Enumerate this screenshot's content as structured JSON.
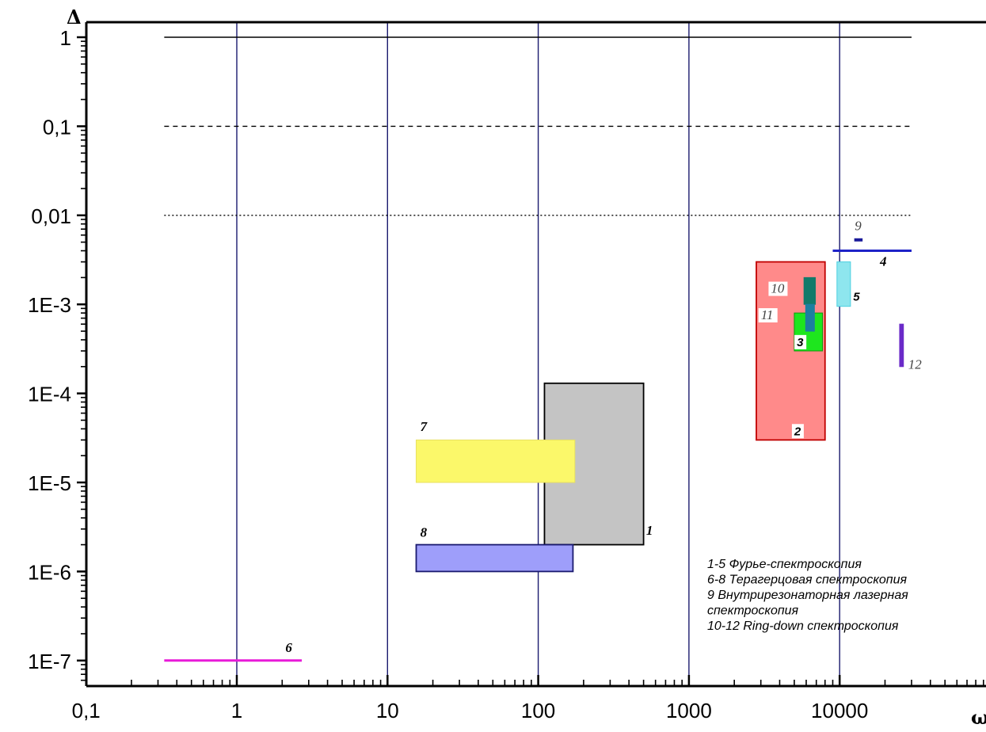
{
  "chart_data": {
    "type": "range-regions",
    "xlabel": "ω",
    "ylabel": "Δ",
    "x_scale": "log",
    "y_scale": "log",
    "xlim": [
      0.1,
      50000
    ],
    "ylim": [
      5e-08,
      1.5
    ],
    "x_ticks": [
      {
        "value": 0.1,
        "label": "0,1"
      },
      {
        "value": 1,
        "label": "1"
      },
      {
        "value": 10,
        "label": "10"
      },
      {
        "value": 100,
        "label": "100"
      },
      {
        "value": 1000,
        "label": "1000"
      },
      {
        "value": 10000,
        "label": "10000"
      }
    ],
    "y_ticks": [
      {
        "value": 1,
        "label": "1"
      },
      {
        "value": 0.1,
        "label": "0,1"
      },
      {
        "value": 0.01,
        "label": "0,01"
      },
      {
        "value": 0.001,
        "label": "1E-3"
      },
      {
        "value": 0.0001,
        "label": "1E-4"
      },
      {
        "value": 1e-05,
        "label": "1E-5"
      },
      {
        "value": 1e-06,
        "label": "1E-6"
      },
      {
        "value": 1e-07,
        "label": "1E-7"
      }
    ],
    "vertical_gridlines": [
      1,
      10,
      100,
      1000,
      10000
    ],
    "reference_lines": [
      {
        "y": 1,
        "x_from": 0.33,
        "x_to": 30000,
        "style": "solid"
      },
      {
        "y": 0.1,
        "x_from": 0.33,
        "x_to": 30000,
        "style": "dashed"
      },
      {
        "y": 0.01,
        "x_from": 0.33,
        "x_to": 30000,
        "style": "dotted"
      }
    ],
    "regions": [
      {
        "label": "1",
        "x_min": 110,
        "x_max": 500,
        "y_min": 2e-06,
        "y_max": 0.00013,
        "fill": "#c4c4c4",
        "stroke": "#000000",
        "label_x": 520,
        "label_y": 2.6e-06,
        "label_style": "serif"
      },
      {
        "label": "2",
        "x_min": 2800,
        "x_max": 8000,
        "y_min": 3e-05,
        "y_max": 0.003,
        "fill": "#ff8a8a",
        "stroke": "#c00000",
        "label_x": 5000,
        "label_y": 3.4e-05,
        "label_style": "boxed"
      },
      {
        "label": "3",
        "x_min": 5000,
        "x_max": 7700,
        "y_min": 0.0003,
        "y_max": 0.0008,
        "fill": "#1ee61e",
        "stroke": "#119911",
        "label_x": 5200,
        "label_y": 0.00034,
        "label_style": "boxed"
      },
      {
        "label": "4",
        "x_min": 9000,
        "x_max": 30000,
        "y_min": 0.004,
        "y_max": 0.004,
        "fill": "#1e22c8",
        "stroke": "#1e22c8",
        "line": true,
        "label_x": 18500,
        "label_y": 0.0027,
        "label_style": "serif"
      },
      {
        "label": "5",
        "x_min": 9600,
        "x_max": 11800,
        "y_min": 0.00095,
        "y_max": 0.003,
        "fill": "#8ee6ee",
        "stroke": "#4cd0e0",
        "label_x": 12300,
        "label_y": 0.0011,
        "label_style": "sans"
      },
      {
        "label": "6",
        "x_min": 0.33,
        "x_max": 2.7,
        "y_min": 1e-07,
        "y_max": 1e-07,
        "fill": "#e81ad8",
        "stroke": "#e81ad8",
        "line": true,
        "label_x": 2.1,
        "label_y": 1.25e-07,
        "label_style": "serif"
      },
      {
        "label": "7",
        "x_min": 15.5,
        "x_max": 175,
        "y_min": 1e-05,
        "y_max": 3e-05,
        "fill": "#fbf86a",
        "stroke": "#e8e060",
        "label_x": 16.5,
        "label_y": 3.8e-05,
        "label_style": "serif"
      },
      {
        "label": "8",
        "x_min": 15.5,
        "x_max": 170,
        "y_min": 1e-06,
        "y_max": 2e-06,
        "fill": "#9e9efa",
        "stroke": "#1a1a6e",
        "label_x": 16.5,
        "label_y": 2.45e-06,
        "label_style": "serif"
      },
      {
        "label": "9",
        "x_min": 12500,
        "x_max": 14200,
        "y_min": 0.0053,
        "y_max": 0.0053,
        "fill": "#1a1a9a",
        "stroke": "#1a1a9a",
        "line": true,
        "label_x": 12600,
        "label_y": 0.0068,
        "label_style": "thin"
      },
      {
        "label": "10",
        "x_min": 5800,
        "x_max": 6900,
        "y_min": 0.001,
        "y_max": 0.002,
        "fill": "#127a6a",
        "stroke": "#127a6a",
        "label_x": 3500,
        "label_y": 0.00135,
        "label_style": "boxed-thin"
      },
      {
        "label": "11",
        "x_min": 5950,
        "x_max": 6800,
        "y_min": 0.0005,
        "y_max": 0.001,
        "fill": "#1d7fa0",
        "stroke": "#1d7fa0",
        "label_x": 3000,
        "label_y": 0.00068,
        "label_style": "boxed-thin"
      },
      {
        "label": "12",
        "x_min": 25000,
        "x_max": 26500,
        "y_min": 0.0002,
        "y_max": 0.0006,
        "fill": "#6a2ac8",
        "stroke": "#6a2ac8",
        "label_x": 28500,
        "label_y": 0.00019,
        "label_style": "thin"
      }
    ],
    "legend": {
      "placement": "bottom-right",
      "lines": [
        "1-5 Фурье-спектроскопия",
        "6-8 Терагерцовая спектроскопия",
        "9 Внутрирезонаторная лазерная",
        "спектроскопия",
        "10-12 Ring-down спектроскопия"
      ]
    }
  }
}
